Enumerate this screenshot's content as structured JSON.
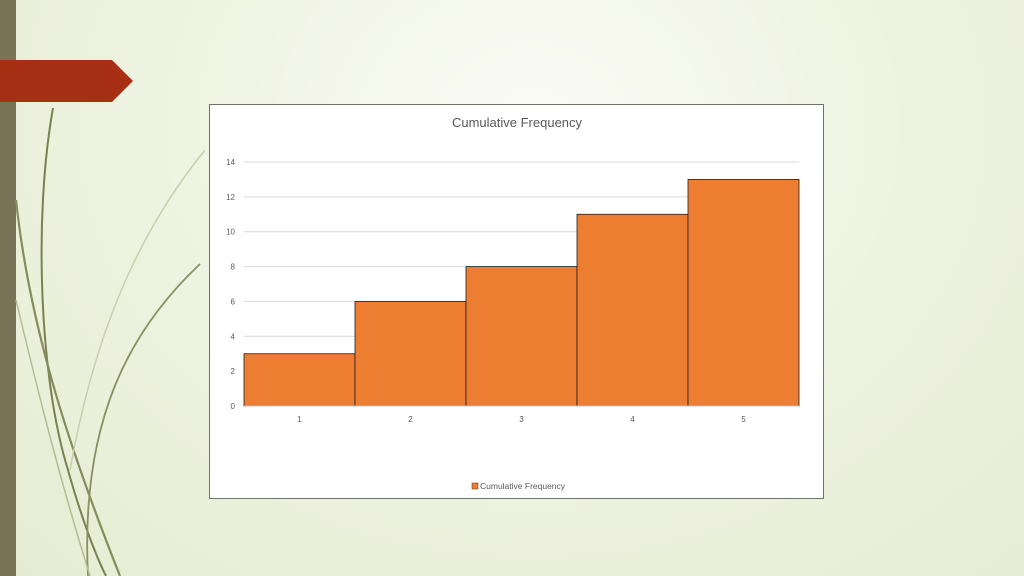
{
  "slide": {
    "colors": {
      "accent_tab": "#a72f14",
      "side_bar": "#7a7358",
      "stems": "#7b8050"
    }
  },
  "chart_data": {
    "type": "bar",
    "title": "Cumulative Frequency",
    "categories": [
      "1",
      "2",
      "3",
      "4",
      "5"
    ],
    "series": [
      {
        "name": "Cumulative Frequency",
        "values": [
          3,
          6,
          8,
          11,
          13
        ],
        "color": "#ed7d31"
      }
    ],
    "xlabel": "",
    "ylabel": "",
    "ylim": [
      0,
      14
    ],
    "yticks": [
      0,
      2,
      4,
      6,
      8,
      10,
      12,
      14
    ],
    "grid": true,
    "legend": "bottom"
  }
}
